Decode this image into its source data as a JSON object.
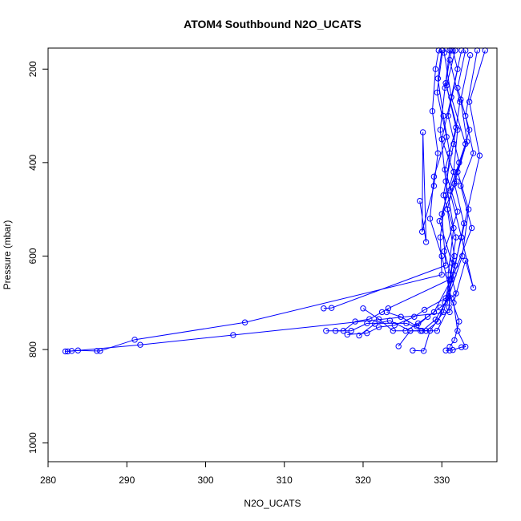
{
  "chart_data": {
    "type": "line",
    "title": "ATOM4 Southbound N2O_UCATS",
    "xlabel": "N2O_UCATS",
    "ylabel": "Pressure (mbar)",
    "xlim": [
      280,
      337
    ],
    "ylim": [
      1040,
      155
    ],
    "y_inverted": true,
    "x_ticks": [
      280,
      290,
      300,
      310,
      320,
      330
    ],
    "y_ticks": [
      200,
      400,
      600,
      800,
      1000
    ],
    "grid": false,
    "legend": "none",
    "series_color": "#0000ff",
    "marker": "open-circle",
    "series": [
      {
        "points": [
          [
            282.2,
            804
          ],
          [
            283.0,
            803
          ],
          [
            283.8,
            802
          ],
          [
            286.2,
            803
          ],
          [
            286.6,
            803
          ],
          [
            291.0,
            779
          ],
          [
            305.0,
            742
          ],
          [
            330.0,
            640
          ],
          [
            329.8,
            560
          ],
          [
            330.5,
            470
          ],
          [
            331.0,
            380
          ],
          [
            330.2,
            300
          ],
          [
            329.5,
            220
          ],
          [
            330.0,
            160
          ]
        ]
      },
      {
        "points": [
          [
            282.5,
            804
          ],
          [
            291.7,
            790
          ],
          [
            303.5,
            769
          ],
          [
            331.0,
            720
          ],
          [
            330.8,
            640
          ],
          [
            331.5,
            540
          ],
          [
            330.5,
            440
          ],
          [
            329.8,
            330
          ],
          [
            330.4,
            240
          ],
          [
            331.0,
            160
          ]
        ]
      },
      {
        "points": [
          [
            315.0,
            712
          ],
          [
            316.0,
            711
          ],
          [
            330.5,
            620
          ],
          [
            330.0,
            510
          ],
          [
            331.5,
            420
          ],
          [
            332.0,
            330
          ],
          [
            330.5,
            230
          ],
          [
            331.2,
            160
          ]
        ]
      },
      {
        "points": [
          [
            315.3,
            760
          ],
          [
            317.5,
            760
          ],
          [
            319.0,
            740
          ],
          [
            320.8,
            735
          ],
          [
            322.4,
            720
          ],
          [
            323.2,
            712
          ],
          [
            331.0,
            650
          ],
          [
            331.8,
            560
          ],
          [
            330.2,
            470
          ],
          [
            331.5,
            360
          ],
          [
            332.3,
            270
          ],
          [
            331.0,
            180
          ]
        ]
      },
      {
        "points": [
          [
            318.0,
            768
          ],
          [
            320.5,
            765
          ],
          [
            322.0,
            752
          ],
          [
            324.0,
            748
          ],
          [
            326.5,
            730
          ],
          [
            327.8,
            715
          ],
          [
            330.5,
            690
          ],
          [
            331.6,
            600
          ],
          [
            330.7,
            500
          ],
          [
            332.2,
            400
          ],
          [
            330.8,
            300
          ],
          [
            332.0,
            200
          ],
          [
            331.4,
            160
          ]
        ]
      },
      {
        "points": [
          [
            320.0,
            712
          ],
          [
            322.0,
            735
          ],
          [
            323.8,
            760
          ],
          [
            325.4,
            760
          ],
          [
            327.0,
            744
          ],
          [
            329.0,
            720
          ],
          [
            331.2,
            650
          ],
          [
            332.5,
            560
          ],
          [
            331.0,
            460
          ],
          [
            333.0,
            360
          ],
          [
            331.2,
            260
          ],
          [
            332.5,
            160
          ]
        ]
      },
      {
        "points": [
          [
            324.5,
            793
          ],
          [
            326.0,
            760
          ],
          [
            327.5,
            760
          ],
          [
            329.2,
            736
          ],
          [
            330.8,
            690
          ],
          [
            332.6,
            600
          ],
          [
            333.4,
            500
          ],
          [
            332.0,
            420
          ],
          [
            333.5,
            330
          ],
          [
            332.0,
            240
          ],
          [
            333.0,
            160
          ]
        ]
      },
      {
        "points": [
          [
            326.3,
            802
          ],
          [
            327.7,
            803
          ],
          [
            328.5,
            760
          ],
          [
            330.2,
            720
          ],
          [
            331.5,
            640
          ],
          [
            333.8,
            540
          ],
          [
            332.4,
            450
          ],
          [
            334.0,
            380
          ],
          [
            333.0,
            300
          ],
          [
            334.5,
            160
          ]
        ]
      },
      {
        "points": [
          [
            330.5,
            802
          ],
          [
            331.0,
            802
          ],
          [
            331.4,
            801
          ],
          [
            332.5,
            795
          ],
          [
            333.0,
            794
          ],
          [
            332.0,
            760
          ],
          [
            331.5,
            700
          ],
          [
            333.0,
            610
          ],
          [
            334.0,
            668
          ],
          [
            332.5,
            560
          ],
          [
            334.8,
            385
          ],
          [
            333.5,
            270
          ],
          [
            335.5,
            160
          ]
        ]
      },
      {
        "points": [
          [
            327.2,
            482
          ],
          [
            328.0,
            570
          ],
          [
            327.6,
            335
          ],
          [
            327.5,
            548
          ],
          [
            329.0,
            450
          ],
          [
            329.5,
            380
          ],
          [
            328.8,
            290
          ],
          [
            329.2,
            200
          ],
          [
            329.6,
            160
          ]
        ]
      },
      {
        "points": [
          [
            331.0,
            794
          ],
          [
            331.6,
            780
          ],
          [
            332.2,
            740
          ],
          [
            331.2,
            690
          ],
          [
            330.0,
            600
          ],
          [
            328.5,
            520
          ],
          [
            329.0,
            430
          ],
          [
            330.6,
            345
          ],
          [
            329.4,
            250
          ],
          [
            330.1,
            160
          ]
        ]
      },
      {
        "points": [
          [
            316.5,
            760
          ],
          [
            318.5,
            760
          ],
          [
            320.5,
            744
          ],
          [
            325.5,
            744
          ],
          [
            328.0,
            760
          ],
          [
            329.5,
            740
          ],
          [
            330.4,
            700
          ],
          [
            331.7,
            620
          ],
          [
            332.8,
            530
          ],
          [
            331.6,
            445
          ],
          [
            333.2,
            355
          ],
          [
            332.4,
            265
          ],
          [
            333.6,
            170
          ]
        ]
      },
      {
        "points": [
          [
            323.0,
            720
          ],
          [
            324.8,
            730
          ],
          [
            326.8,
            750
          ],
          [
            328.2,
            730
          ],
          [
            329.8,
            710
          ],
          [
            331.8,
            680
          ],
          [
            330.3,
            590
          ],
          [
            332.0,
            505
          ],
          [
            330.4,
            415
          ],
          [
            331.8,
            325
          ],
          [
            330.6,
            235
          ],
          [
            331.7,
            160
          ]
        ]
      },
      {
        "points": [
          [
            319.5,
            770
          ],
          [
            321.5,
            745
          ],
          [
            323.4,
            738
          ],
          [
            326.0,
            760
          ],
          [
            327.3,
            760
          ],
          [
            329.4,
            760
          ],
          [
            330.9,
            710
          ],
          [
            331.3,
            615
          ],
          [
            329.7,
            525
          ],
          [
            331.9,
            440
          ],
          [
            330.0,
            350
          ],
          [
            331.2,
            260
          ],
          [
            330.3,
            165
          ]
        ]
      }
    ]
  }
}
